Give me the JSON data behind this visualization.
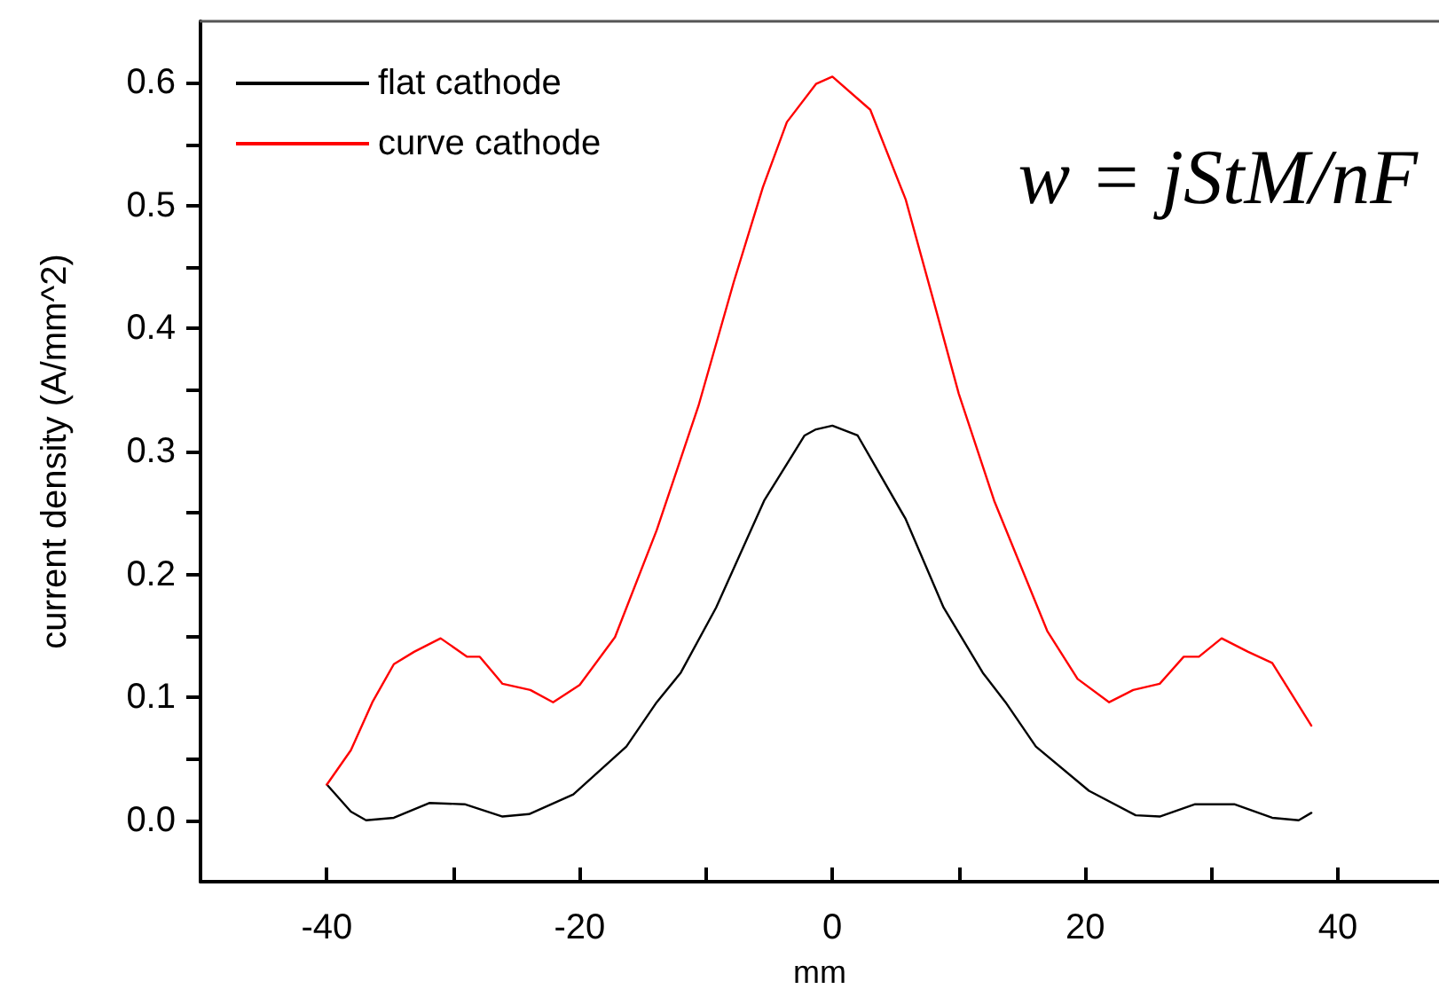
{
  "chart_data": {
    "type": "line",
    "xlabel": "mm",
    "ylabel": "current density (A/mm^2)",
    "xlim": [
      -50,
      48
    ],
    "xticks": [
      -40,
      {
        "value": -30,
        "label": null
      },
      -20,
      {
        "value": -10,
        "label": null
      },
      0,
      {
        "value": 10,
        "label": null
      },
      20,
      {
        "value": 30,
        "label": null
      },
      40
    ],
    "ylim": [
      -0.05,
      0.65
    ],
    "yticks": [
      {
        "value": 0,
        "label": "0.0"
      },
      {
        "value": 0.05,
        "label": null
      },
      {
        "value": 0.1,
        "label": "0.1"
      },
      {
        "value": 0.15,
        "label": null
      },
      {
        "value": 0.2,
        "label": "0.2"
      },
      {
        "value": 0.25,
        "label": null
      },
      {
        "value": 0.3,
        "label": "0.3"
      },
      {
        "value": 0.35,
        "label": null
      },
      {
        "value": 0.4,
        "label": "0.4"
      },
      {
        "value": 0.45,
        "label": null
      },
      {
        "value": 0.5,
        "label": "0.5"
      },
      {
        "value": 0.55,
        "label": null
      },
      {
        "value": 0.6,
        "label": "0.6"
      }
    ],
    "grid": false,
    "legend": "top left",
    "marker": "none",
    "line_style": "solid",
    "annotations": [
      "w = jStM/nF"
    ],
    "series": [
      {
        "name": "flat cathode",
        "color": "#000000",
        "x": [
          -40,
          -38.1,
          -36.9,
          -34.7,
          -31.9,
          -29.1,
          -26.1,
          -24,
          -20.5,
          -16.3,
          -13.9,
          -12,
          -9.2,
          -5.4,
          -2.2,
          -1.3,
          0,
          2,
          5.8,
          8.8,
          11.9,
          13.7,
          16.1,
          20.3,
          24,
          25.9,
          28.7,
          31.8,
          34.8,
          36.9,
          37.9
        ],
        "values": [
          0.029,
          0.007,
          0.0,
          0.002,
          0.014,
          0.013,
          0.003,
          0.005,
          0.021,
          0.06,
          0.096,
          0.12,
          0.173,
          0.26,
          0.313,
          0.318,
          0.321,
          0.313,
          0.245,
          0.173,
          0.12,
          0.096,
          0.06,
          0.024,
          0.004,
          0.003,
          0.013,
          0.013,
          0.002,
          0.0,
          0.006
        ]
      },
      {
        "name": "curve cathode",
        "color": "#ff0000",
        "x": [
          -40,
          -38.1,
          -36.4,
          -34.7,
          -33.1,
          -31,
          -28.9,
          -27.9,
          -26.1,
          -23.9,
          -22.1,
          -20,
          -17.2,
          -13.9,
          -10.6,
          -7.8,
          -5.5,
          -3.6,
          -1.3,
          0,
          3,
          5.8,
          8.1,
          10,
          12.8,
          17,
          19.4,
          21.9,
          23.8,
          25.9,
          27.8,
          29,
          30.8,
          32.9,
          34.8,
          37.9
        ],
        "values": [
          0.029,
          0.057,
          0.096,
          0.127,
          0.137,
          0.148,
          0.133,
          0.133,
          0.111,
          0.106,
          0.096,
          0.11,
          0.149,
          0.236,
          0.337,
          0.438,
          0.515,
          0.568,
          0.599,
          0.605,
          0.578,
          0.505,
          0.419,
          0.347,
          0.26,
          0.154,
          0.115,
          0.096,
          0.106,
          0.111,
          0.133,
          0.133,
          0.148,
          0.137,
          0.128,
          0.077
        ]
      }
    ]
  }
}
